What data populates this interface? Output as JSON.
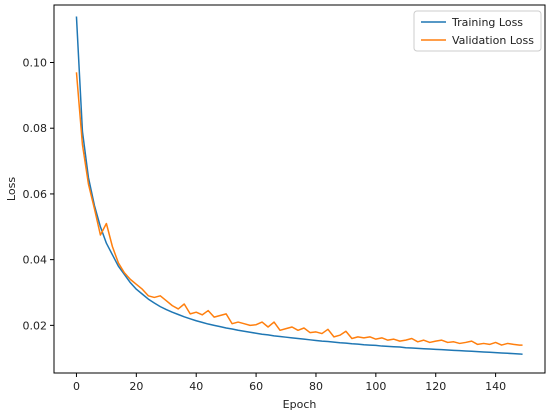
{
  "chart_data": {
    "type": "line",
    "title": "",
    "xlabel": "Epoch",
    "ylabel": "Loss",
    "xlim": [
      -7.5,
      156.5
    ],
    "ylim": [
      0.0055,
      0.1175
    ],
    "xticks": [
      0,
      20,
      40,
      60,
      80,
      100,
      120,
      140
    ],
    "yticks": [
      0.02,
      0.04,
      0.06,
      0.08,
      0.1
    ],
    "ytick_labels": [
      "0.02",
      "0.04",
      "0.06",
      "0.08",
      "0.10"
    ],
    "grid": false,
    "legend_position": "top-right",
    "colors": {
      "training": "#1f77b4",
      "validation": "#ff7f0e"
    },
    "x": [
      0,
      2,
      4,
      6,
      8,
      10,
      12,
      14,
      16,
      18,
      20,
      22,
      24,
      26,
      28,
      30,
      32,
      34,
      36,
      38,
      40,
      42,
      44,
      46,
      48,
      50,
      52,
      54,
      56,
      58,
      60,
      62,
      64,
      66,
      68,
      70,
      72,
      74,
      76,
      78,
      80,
      82,
      84,
      86,
      88,
      90,
      92,
      94,
      96,
      98,
      100,
      102,
      104,
      106,
      108,
      110,
      112,
      114,
      116,
      118,
      120,
      122,
      124,
      126,
      128,
      130,
      132,
      134,
      136,
      138,
      140,
      142,
      144,
      146,
      148,
      149
    ],
    "series": [
      {
        "name": "Training Loss",
        "color": "#1f77b4",
        "values": [
          0.114,
          0.079,
          0.065,
          0.0565,
          0.05,
          0.045,
          0.0415,
          0.038,
          0.0355,
          0.033,
          0.031,
          0.0295,
          0.028,
          0.0268,
          0.0257,
          0.0248,
          0.024,
          0.0233,
          0.0226,
          0.022,
          0.0214,
          0.0209,
          0.0204,
          0.02,
          0.0196,
          0.0192,
          0.0189,
          0.0185,
          0.0182,
          0.0179,
          0.0176,
          0.0173,
          0.0171,
          0.0168,
          0.0166,
          0.0164,
          0.0162,
          0.016,
          0.0158,
          0.0156,
          0.0154,
          0.0152,
          0.0151,
          0.0149,
          0.0147,
          0.0146,
          0.0144,
          0.0143,
          0.0141,
          0.014,
          0.0139,
          0.0137,
          0.0136,
          0.0135,
          0.0134,
          0.0132,
          0.0131,
          0.013,
          0.0129,
          0.0128,
          0.0127,
          0.0126,
          0.0125,
          0.0124,
          0.0123,
          0.0122,
          0.0121,
          0.012,
          0.0119,
          0.0118,
          0.0117,
          0.0116,
          0.0115,
          0.0114,
          0.0113,
          0.0112
        ]
      },
      {
        "name": "Validation Loss",
        "color": "#ff7f0e",
        "values": [
          0.097,
          0.075,
          0.063,
          0.0555,
          0.0475,
          0.051,
          0.044,
          0.039,
          0.036,
          0.034,
          0.0325,
          0.031,
          0.029,
          0.0285,
          0.029,
          0.0275,
          0.026,
          0.025,
          0.0265,
          0.0235,
          0.024,
          0.0232,
          0.0245,
          0.0225,
          0.023,
          0.0235,
          0.0205,
          0.021,
          0.0205,
          0.02,
          0.0202,
          0.021,
          0.0195,
          0.021,
          0.0185,
          0.019,
          0.0195,
          0.0185,
          0.0192,
          0.0178,
          0.018,
          0.0175,
          0.0188,
          0.0165,
          0.017,
          0.0182,
          0.016,
          0.0165,
          0.0162,
          0.0165,
          0.0158,
          0.0162,
          0.0155,
          0.0158,
          0.0152,
          0.0155,
          0.016,
          0.015,
          0.0155,
          0.0148,
          0.0152,
          0.0155,
          0.0148,
          0.015,
          0.0145,
          0.0148,
          0.0152,
          0.0142,
          0.0145,
          0.0142,
          0.0148,
          0.014,
          0.0145,
          0.0142,
          0.014,
          0.014
        ]
      }
    ]
  }
}
